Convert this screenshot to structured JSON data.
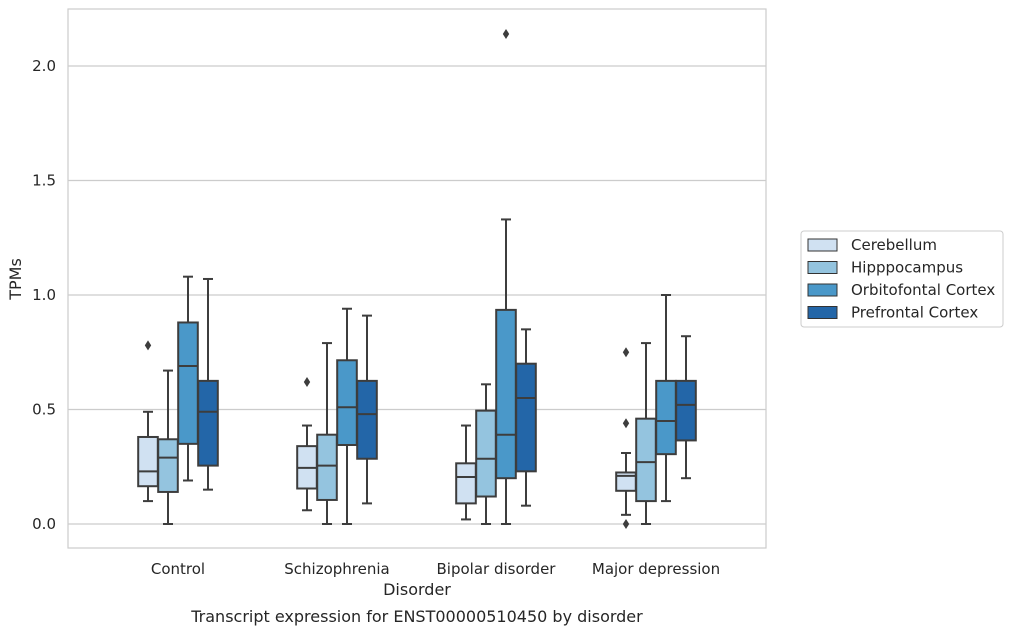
{
  "chart_data": {
    "type": "box",
    "title": "",
    "caption": "Transcript expression for ENST00000510450 by disorder",
    "xlabel": "Disorder",
    "ylabel": "TPMs",
    "ylim": [
      -0.1,
      2.27
    ],
    "yticks": [
      "0.0",
      "0.5",
      "1.0",
      "1.5",
      "2.0"
    ],
    "ytick_values": [
      0.0,
      0.5,
      1.0,
      1.5,
      2.0
    ],
    "grid": "horizontal",
    "legend_position": "right",
    "categories": [
      "Control",
      "Schizophrenia",
      "Bipolar disorder",
      "Major depression"
    ],
    "series": [
      {
        "name": "Cerebellum",
        "color": "#d0e1f2",
        "boxes": [
          {
            "whisker_low": 0.1,
            "q1": 0.165,
            "median": 0.23,
            "q3": 0.38,
            "whisker_high": 0.49,
            "outliers": [
              0.78
            ]
          },
          {
            "whisker_low": 0.06,
            "q1": 0.155,
            "median": 0.245,
            "q3": 0.34,
            "whisker_high": 0.43,
            "outliers": [
              0.62
            ]
          },
          {
            "whisker_low": 0.02,
            "q1": 0.09,
            "median": 0.205,
            "q3": 0.265,
            "whisker_high": 0.43,
            "outliers": []
          },
          {
            "whisker_low": 0.04,
            "q1": 0.145,
            "median": 0.21,
            "q3": 0.225,
            "whisker_high": 0.31,
            "outliers": [
              0.0,
              0.44,
              0.75
            ]
          }
        ]
      },
      {
        "name": "Hipppocampus",
        "color": "#94c4df",
        "boxes": [
          {
            "whisker_low": 0.0,
            "q1": 0.14,
            "median": 0.29,
            "q3": 0.37,
            "whisker_high": 0.67,
            "outliers": []
          },
          {
            "whisker_low": 0.0,
            "q1": 0.105,
            "median": 0.255,
            "q3": 0.39,
            "whisker_high": 0.79,
            "outliers": []
          },
          {
            "whisker_low": 0.0,
            "q1": 0.12,
            "median": 0.285,
            "q3": 0.495,
            "whisker_high": 0.61,
            "outliers": []
          },
          {
            "whisker_low": 0.0,
            "q1": 0.1,
            "median": 0.27,
            "q3": 0.46,
            "whisker_high": 0.79,
            "outliers": []
          }
        ]
      },
      {
        "name": "Orbitofontal Cortex",
        "color": "#4a98c9",
        "boxes": [
          {
            "whisker_low": 0.19,
            "q1": 0.35,
            "median": 0.69,
            "q3": 0.88,
            "whisker_high": 1.08,
            "outliers": []
          },
          {
            "whisker_low": 0.0,
            "q1": 0.345,
            "median": 0.51,
            "q3": 0.715,
            "whisker_high": 0.94,
            "outliers": []
          },
          {
            "whisker_low": 0.0,
            "q1": 0.2,
            "median": 0.39,
            "q3": 0.935,
            "whisker_high": 1.33,
            "outliers": [
              2.14
            ]
          },
          {
            "whisker_low": 0.1,
            "q1": 0.305,
            "median": 0.45,
            "q3": 0.625,
            "whisker_high": 1.0,
            "outliers": []
          }
        ]
      },
      {
        "name": "Prefrontal Cortex",
        "color": "#2366a8",
        "boxes": [
          {
            "whisker_low": 0.15,
            "q1": 0.255,
            "median": 0.49,
            "q3": 0.625,
            "whisker_high": 1.07,
            "outliers": []
          },
          {
            "whisker_low": 0.09,
            "q1": 0.285,
            "median": 0.48,
            "q3": 0.625,
            "whisker_high": 0.91,
            "outliers": []
          },
          {
            "whisker_low": 0.08,
            "q1": 0.23,
            "median": 0.55,
            "q3": 0.7,
            "whisker_high": 0.85,
            "outliers": []
          },
          {
            "whisker_low": 0.2,
            "q1": 0.365,
            "median": 0.52,
            "q3": 0.625,
            "whisker_high": 0.82,
            "outliers": []
          }
        ]
      }
    ]
  }
}
